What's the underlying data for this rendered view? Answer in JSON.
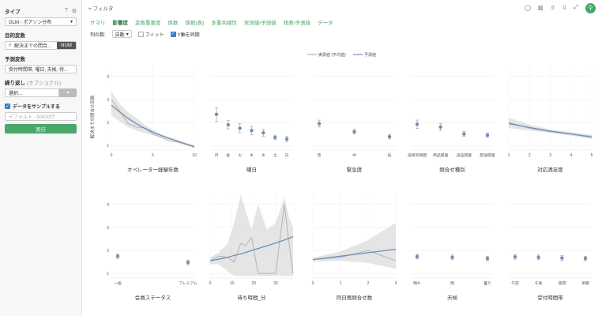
{
  "sidebar": {
    "type_label": "タイプ",
    "type_value": "GLM - ポアソン分布",
    "target_label": "目的変数",
    "target_value": "解決までの問合...",
    "target_badge": "NUM",
    "predictors_label": "予測変数",
    "predictors_value": "受付時間帯, 曜日, 天候, 待...",
    "repeat_label": "繰り返し",
    "repeat_optional": "(オプショナル)",
    "repeat_placeholder": "選択...",
    "sample_label": "データをサンプルする",
    "sample_placeholder": "デフォルト - 50000行",
    "run_label": "実行"
  },
  "topbar": {
    "filter_label": "+ フィルタ"
  },
  "tabs": [
    "サマリ",
    "影響度",
    "変数重要度",
    "係数",
    "係数(表)",
    "多重共線性",
    "実測値/予測値",
    "残差/予測値",
    "データ"
  ],
  "active_tab": 1,
  "options": {
    "columns_label": "列の数:",
    "columns_value": "自動",
    "fit_label": "フィット",
    "sync_y_label": "Y軸を同期"
  },
  "legend": {
    "actual": "実測値 (平均値)",
    "predicted": "予測値"
  },
  "colors": {
    "predicted": "#6f8fb6",
    "actual": "#b5b5b5",
    "band": "#dcdcdc",
    "accent": "#4aa76b"
  },
  "y_axis_label": "解決までの問合せ回数",
  "y_ticks": [
    "1",
    "2",
    "3",
    "4"
  ],
  "chart_data": [
    {
      "type": "line",
      "title": "オペレーター経験年数",
      "x_ticks": [
        "0",
        "5",
        "10"
      ],
      "x": [
        0,
        1,
        2,
        3,
        4,
        5,
        6,
        7,
        8,
        9,
        10
      ],
      "predicted": [
        2.75,
        2.45,
        2.18,
        1.95,
        1.75,
        1.58,
        1.43,
        1.3,
        1.18,
        1.06,
        0.95
      ],
      "actual": [
        3.0,
        2.5,
        1.95,
        1.8,
        1.75,
        1.5,
        1.35,
        1.2,
        1.15,
        1.05,
        0.92
      ],
      "band_upper": [
        3.35,
        2.8,
        2.45,
        2.2,
        1.9,
        1.68,
        1.5,
        1.37,
        1.25,
        1.12,
        1.02
      ],
      "band_lower": [
        2.3,
        2.05,
        1.8,
        1.65,
        1.55,
        1.45,
        1.34,
        1.24,
        1.11,
        1.0,
        0.9
      ],
      "ylim": [
        0.8,
        4.5
      ]
    },
    {
      "type": "scatter",
      "title": "曜日",
      "categories": [
        "月",
        "金",
        "火",
        "木",
        "水",
        "土",
        "日"
      ],
      "values": [
        2.35,
        1.9,
        1.75,
        1.65,
        1.55,
        1.35,
        1.28
      ],
      "err": [
        0.3,
        0.18,
        0.2,
        0.18,
        0.15,
        0.1,
        0.12
      ],
      "ylim": [
        0.8,
        4.5
      ]
    },
    {
      "type": "scatter",
      "title": "緊急度",
      "categories": [
        "高",
        "中",
        "低"
      ],
      "values": [
        1.95,
        1.6,
        1.38
      ],
      "err": [
        0.15,
        0.1,
        0.1
      ],
      "ylim": [
        0.8,
        4.5
      ]
    },
    {
      "type": "scatter",
      "title": "問合せ種別",
      "categories": [
        "技術的問題",
        "商品関連",
        "返品関連",
        "配送関連"
      ],
      "values": [
        1.92,
        1.8,
        1.5,
        1.45
      ],
      "err": [
        0.18,
        0.15,
        0.1,
        0.1
      ],
      "ylim": [
        0.8,
        4.5
      ]
    },
    {
      "type": "line",
      "title": "対応満足度",
      "x_ticks": [
        "1",
        "2",
        "3",
        "4",
        "5"
      ],
      "x": [
        1,
        2,
        3,
        4,
        5
      ],
      "predicted": [
        1.95,
        1.78,
        1.62,
        1.5,
        1.36
      ],
      "actual": [
        2.0,
        1.75,
        1.6,
        1.5,
        1.4
      ],
      "band_upper": [
        2.2,
        1.9,
        1.7,
        1.58,
        1.46
      ],
      "band_lower": [
        1.75,
        1.65,
        1.55,
        1.42,
        1.28
      ],
      "ylim": [
        0.8,
        4.5
      ]
    },
    {
      "type": "scatter",
      "title": "会員ステータス",
      "categories": [
        "一般",
        "プレミアム"
      ],
      "values": [
        1.75,
        1.48
      ],
      "err": [
        0.1,
        0.1
      ],
      "ylim": [
        0.8,
        4.5
      ]
    },
    {
      "type": "line",
      "title": "待ち時間_分",
      "x_ticks": [
        "0",
        "10",
        "20",
        "30"
      ],
      "x": [
        0,
        4,
        8,
        11,
        14,
        16,
        19,
        22,
        26,
        30,
        34,
        36,
        38
      ],
      "predicted": [
        1.55,
        1.62,
        1.7,
        1.78,
        1.85,
        1.9,
        2.0,
        2.08,
        2.2,
        2.32,
        2.45,
        2.52,
        2.6
      ],
      "actual": [
        1.55,
        1.75,
        1.7,
        1.5,
        2.3,
        2.2,
        2.55,
        1.0,
        1.0,
        1.0,
        4.0,
        2.4,
        1.0
      ],
      "band_upper": [
        1.7,
        1.9,
        2.3,
        3.2,
        4.4,
        3.8,
        2.9,
        4.0,
        2.9,
        3.2,
        4.3,
        3.5,
        3.0
      ],
      "band_lower": [
        1.4,
        1.4,
        1.1,
        0.9,
        0.9,
        0.9,
        0.9,
        0.9,
        0.9,
        0.9,
        0.9,
        0.9,
        0.9
      ],
      "ylim": [
        0.8,
        4.5
      ]
    },
    {
      "type": "line",
      "title": "同日再問合せ数",
      "x_ticks": [
        "0",
        "1",
        "2",
        "3"
      ],
      "x": [
        0,
        1,
        2,
        3
      ],
      "predicted": [
        1.6,
        1.75,
        1.9,
        2.05
      ],
      "actual": [
        1.6,
        1.7,
        2.0,
        1.55
      ],
      "band_upper": [
        1.68,
        1.95,
        2.45,
        3.2
      ],
      "band_lower": [
        1.52,
        1.55,
        1.45,
        1.2
      ],
      "ylim": [
        0.8,
        4.5
      ]
    },
    {
      "type": "scatter",
      "title": "天候",
      "categories": [
        "晴れ",
        "雨",
        "曇り"
      ],
      "values": [
        1.73,
        1.7,
        1.65
      ],
      "err": [
        0.1,
        0.1,
        0.1
      ],
      "ylim": [
        0.8,
        4.5
      ]
    },
    {
      "type": "scatter",
      "title": "受付時間帯",
      "categories": [
        "午前",
        "午後",
        "夜間",
        "早朝"
      ],
      "values": [
        1.72,
        1.7,
        1.67,
        1.65
      ],
      "err": [
        0.1,
        0.1,
        0.1,
        0.1
      ],
      "ylim": [
        0.8,
        4.5
      ]
    }
  ]
}
